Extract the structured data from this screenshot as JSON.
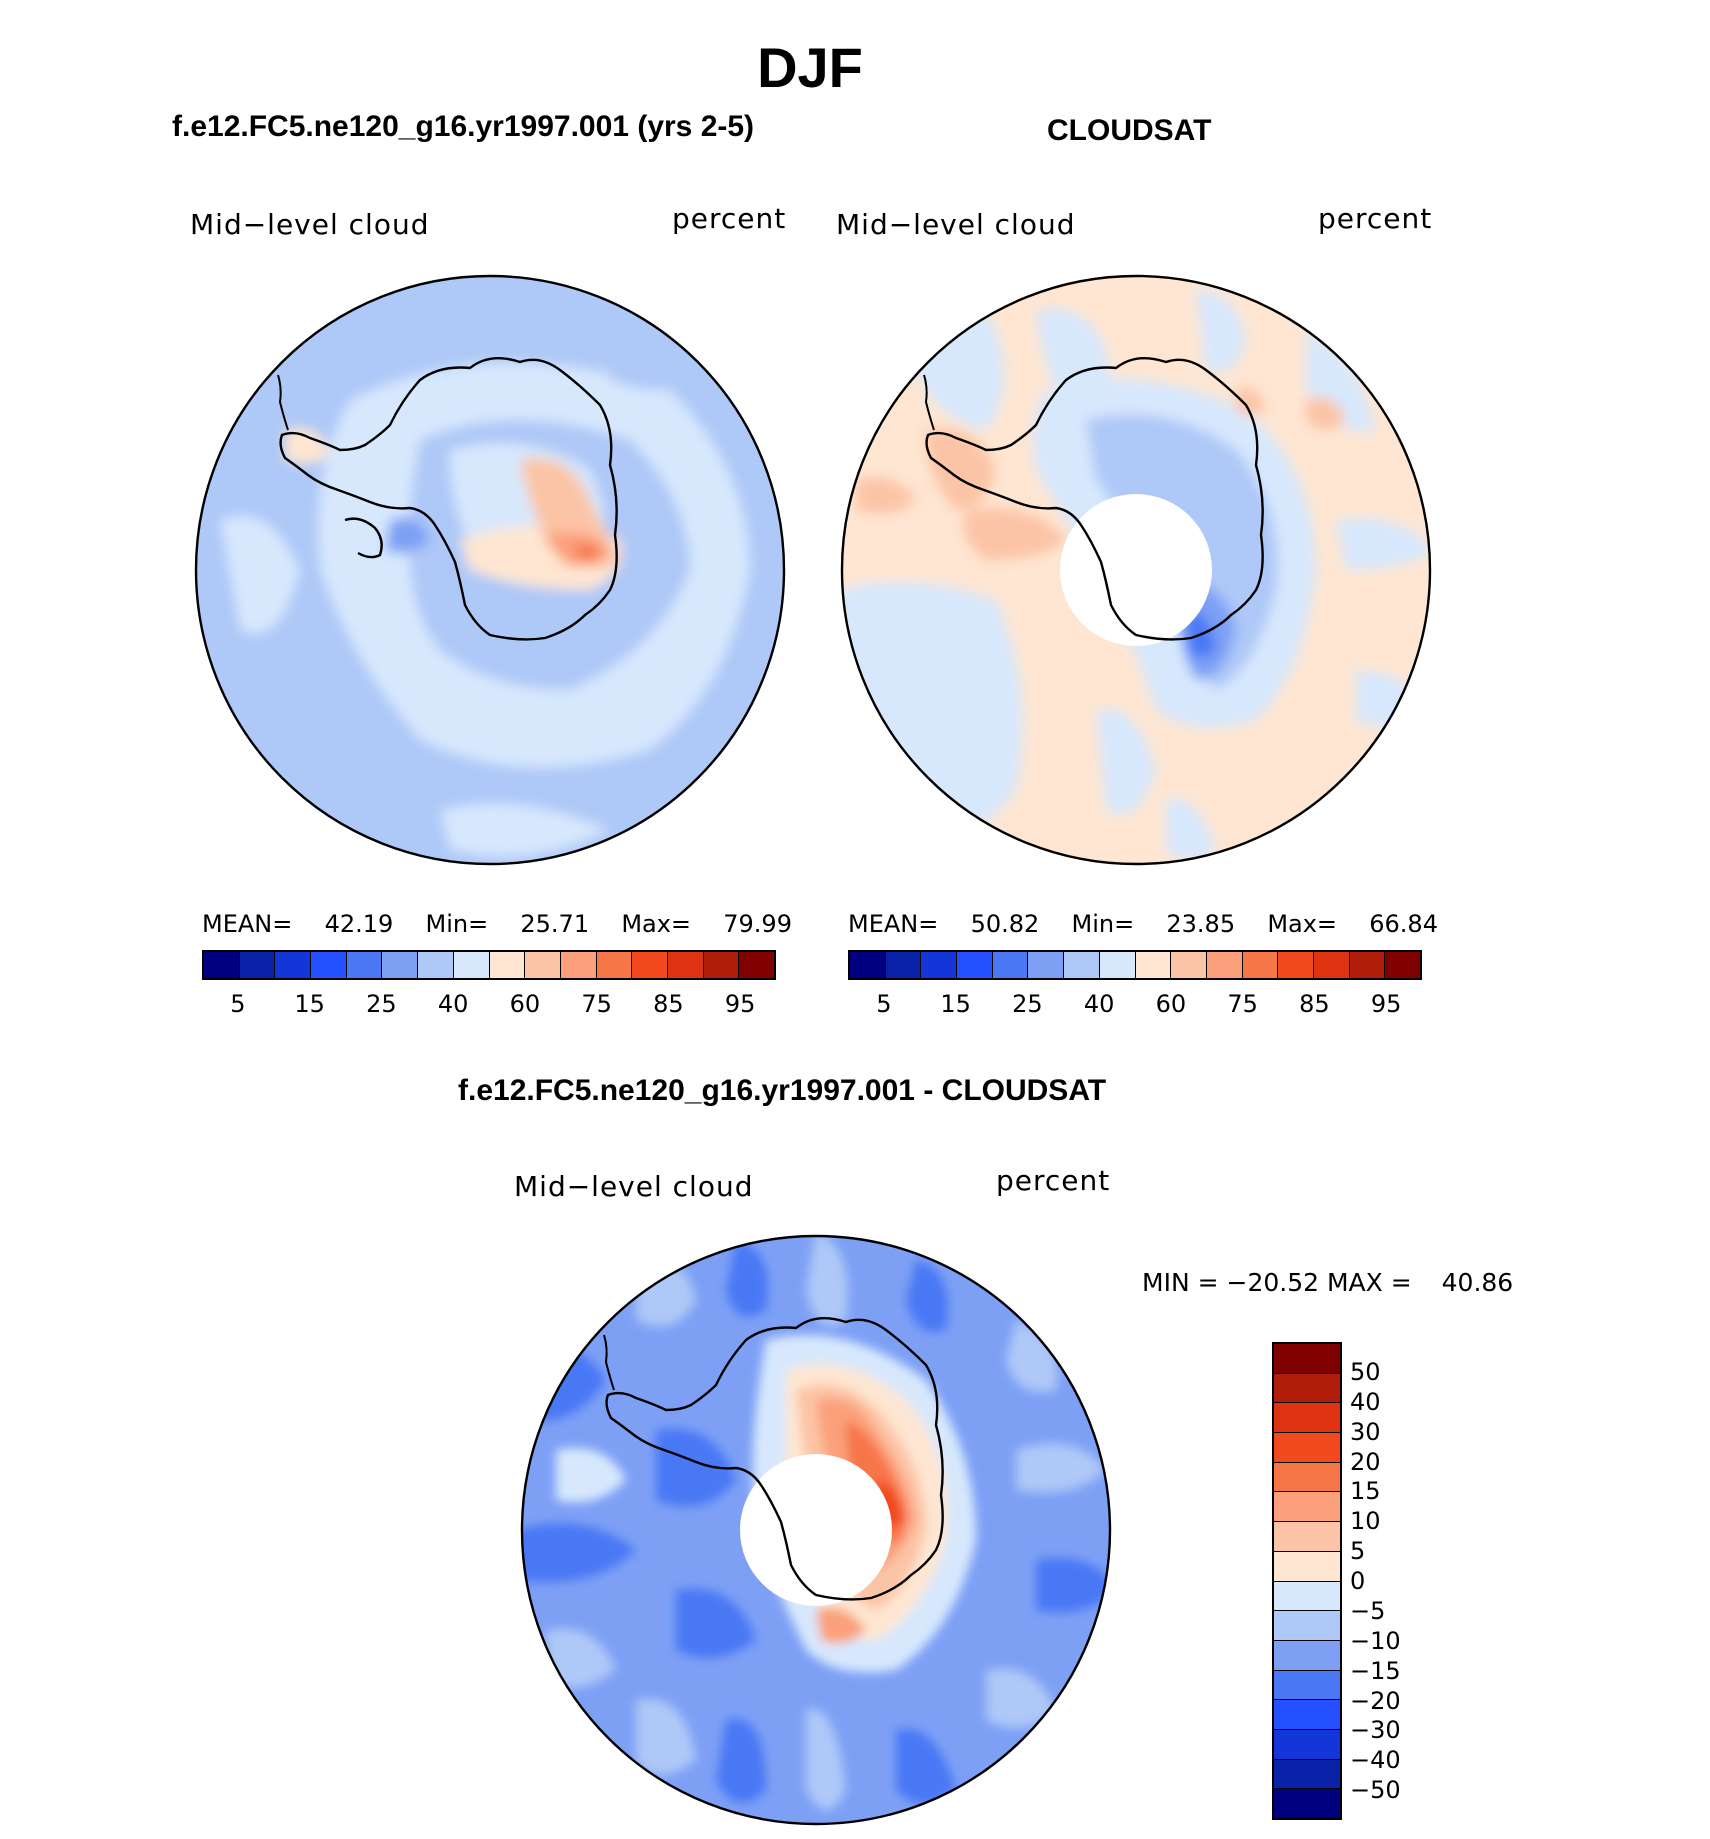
{
  "title": "DJF",
  "panels": {
    "model": {
      "heading": "f.e12.FC5.ne120_g16.yr1997.001 (yrs 2-5)",
      "left_label": "Mid−level cloud",
      "right_label": "percent",
      "stats": {
        "mean_label": "MEAN=",
        "mean": "42.19",
        "min_label": "Min=",
        "min": "25.71",
        "max_label": "Max=",
        "max": "79.99"
      }
    },
    "obs": {
      "heading": "CLOUDSAT",
      "left_label": "Mid−level cloud",
      "right_label": "percent",
      "stats": {
        "mean_label": "MEAN=",
        "mean": "50.82",
        "min_label": "Min=",
        "min": "23.85",
        "max_label": "Max=",
        "max": "66.84"
      }
    },
    "diff": {
      "heading": "f.e12.FC5.ne120_g16.yr1997.001 - CLOUDSAT",
      "left_label": "Mid−level cloud",
      "right_label": "percent",
      "minmax": {
        "min_label": "MIN =",
        "min": "−20.52",
        "max_label": "MAX =",
        "max": "40.86"
      }
    }
  },
  "colorbar_abs": {
    "colors": [
      "#000080",
      "#0a22a8",
      "#1436d8",
      "#2450ff",
      "#4a78f5",
      "#7da0f5",
      "#aec8f7",
      "#d7e8fd",
      "#fee6d2",
      "#fcc4a6",
      "#fba07a",
      "#f77648",
      "#f24a1e",
      "#de3210",
      "#b01e0a",
      "#800000"
    ],
    "labels": [
      "5",
      "15",
      "25",
      "40",
      "60",
      "75",
      "85",
      "95"
    ]
  },
  "colorbar_diff": {
    "colors": [
      "#800000",
      "#b01e0a",
      "#de3210",
      "#f24a1e",
      "#f77648",
      "#fba07a",
      "#fcc4a6",
      "#fee6d2",
      "#d7e8fd",
      "#aec8f7",
      "#7da0f5",
      "#4a78f5",
      "#2450ff",
      "#1436d8",
      "#0a22a8",
      "#000080"
    ],
    "labels": [
      "50",
      "40",
      "30",
      "20",
      "15",
      "10",
      "5",
      "0",
      "−5",
      "−10",
      "−15",
      "−20",
      "−30",
      "−40",
      "−50"
    ]
  }
}
